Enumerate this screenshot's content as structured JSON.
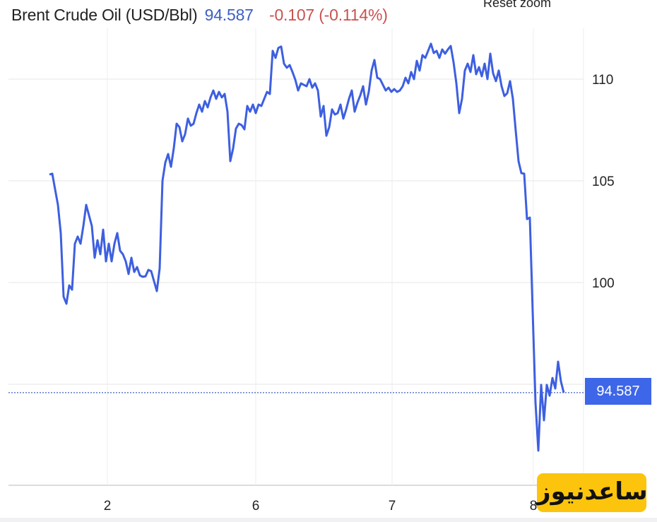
{
  "header": {
    "instrument": "Brent Crude Oil (USD/Bbl)",
    "price": "94.587",
    "change": "-0.107 (-0.114%)",
    "reset_zoom_label": "Reset zoom"
  },
  "price_tag": "94.587",
  "watermark": "ساعدنیوز",
  "colors": {
    "line": "#3d5fe0",
    "price": "#3d5fc4",
    "change": "#c9524f",
    "tag": "#3d66e8",
    "watermark_bg": "#fcc40c"
  },
  "chart_data": {
    "type": "line",
    "title": "Brent Crude Oil (USD/Bbl)",
    "xlabel": "",
    "ylabel": "",
    "x_tick_labels": [
      "2",
      "6",
      "7",
      "8"
    ],
    "y_tick_labels": [
      "100",
      "105",
      "110"
    ],
    "ylim": [
      89.5,
      111.9
    ],
    "grid": true,
    "y_axis_position": "right",
    "last_value": 94.587,
    "series": [
      {
        "values": [
          105.31,
          105.35,
          104.58,
          103.82,
          102.43,
          99.31,
          98.96,
          99.86,
          99.65,
          101.91,
          102.26,
          101.91,
          102.78,
          103.82,
          103.3,
          102.78,
          101.22,
          102.08,
          101.39,
          102.6,
          101.04,
          101.91,
          101.04,
          101.91,
          102.43,
          101.56,
          101.39,
          101.04,
          100.42,
          101.22,
          100.52,
          100.76,
          100.35,
          100.28,
          100.31,
          100.62,
          100.56,
          100.07,
          99.58,
          100.69,
          105.0,
          105.9,
          106.32,
          105.69,
          106.6,
          107.81,
          107.64,
          106.94,
          107.29,
          108.06,
          107.71,
          107.81,
          108.33,
          108.75,
          108.4,
          108.92,
          108.61,
          109.1,
          109.44,
          109.03,
          109.37,
          109.1,
          109.27,
          108.4,
          105.97,
          106.6,
          107.57,
          107.81,
          107.74,
          107.53,
          108.68,
          108.4,
          108.75,
          108.33,
          108.75,
          108.68,
          109.03,
          109.37,
          109.27,
          111.39,
          111.04,
          111.53,
          111.6,
          110.76,
          110.56,
          110.69,
          110.35,
          109.97,
          109.44,
          109.79,
          109.72,
          109.65,
          110.0,
          109.58,
          109.79,
          109.44,
          108.16,
          108.68,
          107.22,
          107.64,
          108.51,
          108.26,
          108.33,
          108.75,
          108.06,
          108.51,
          109.03,
          109.44,
          108.4,
          108.85,
          109.2,
          109.65,
          108.75,
          109.37,
          110.42,
          110.94,
          110.07,
          110.0,
          109.72,
          109.44,
          109.58,
          109.37,
          109.51,
          109.37,
          109.44,
          109.65,
          110.07,
          109.79,
          110.35,
          110.0,
          110.9,
          110.42,
          111.18,
          111.04,
          111.39,
          111.74,
          111.28,
          111.39,
          111.04,
          111.46,
          111.25,
          111.46,
          111.63,
          110.83,
          109.79,
          108.33,
          109.03,
          110.42,
          110.76,
          110.35,
          111.18,
          110.24,
          110.59,
          110.14,
          110.76,
          110.0,
          111.25,
          110.28,
          109.9,
          110.42,
          109.65,
          109.17,
          109.31,
          109.9,
          109.03,
          107.47,
          105.97,
          105.38,
          105.35,
          103.12,
          103.19,
          98.61,
          94.1,
          91.74,
          94.97,
          93.23,
          94.97,
          94.44,
          95.31,
          94.79,
          96.11,
          95.14,
          94.587
        ]
      }
    ]
  }
}
